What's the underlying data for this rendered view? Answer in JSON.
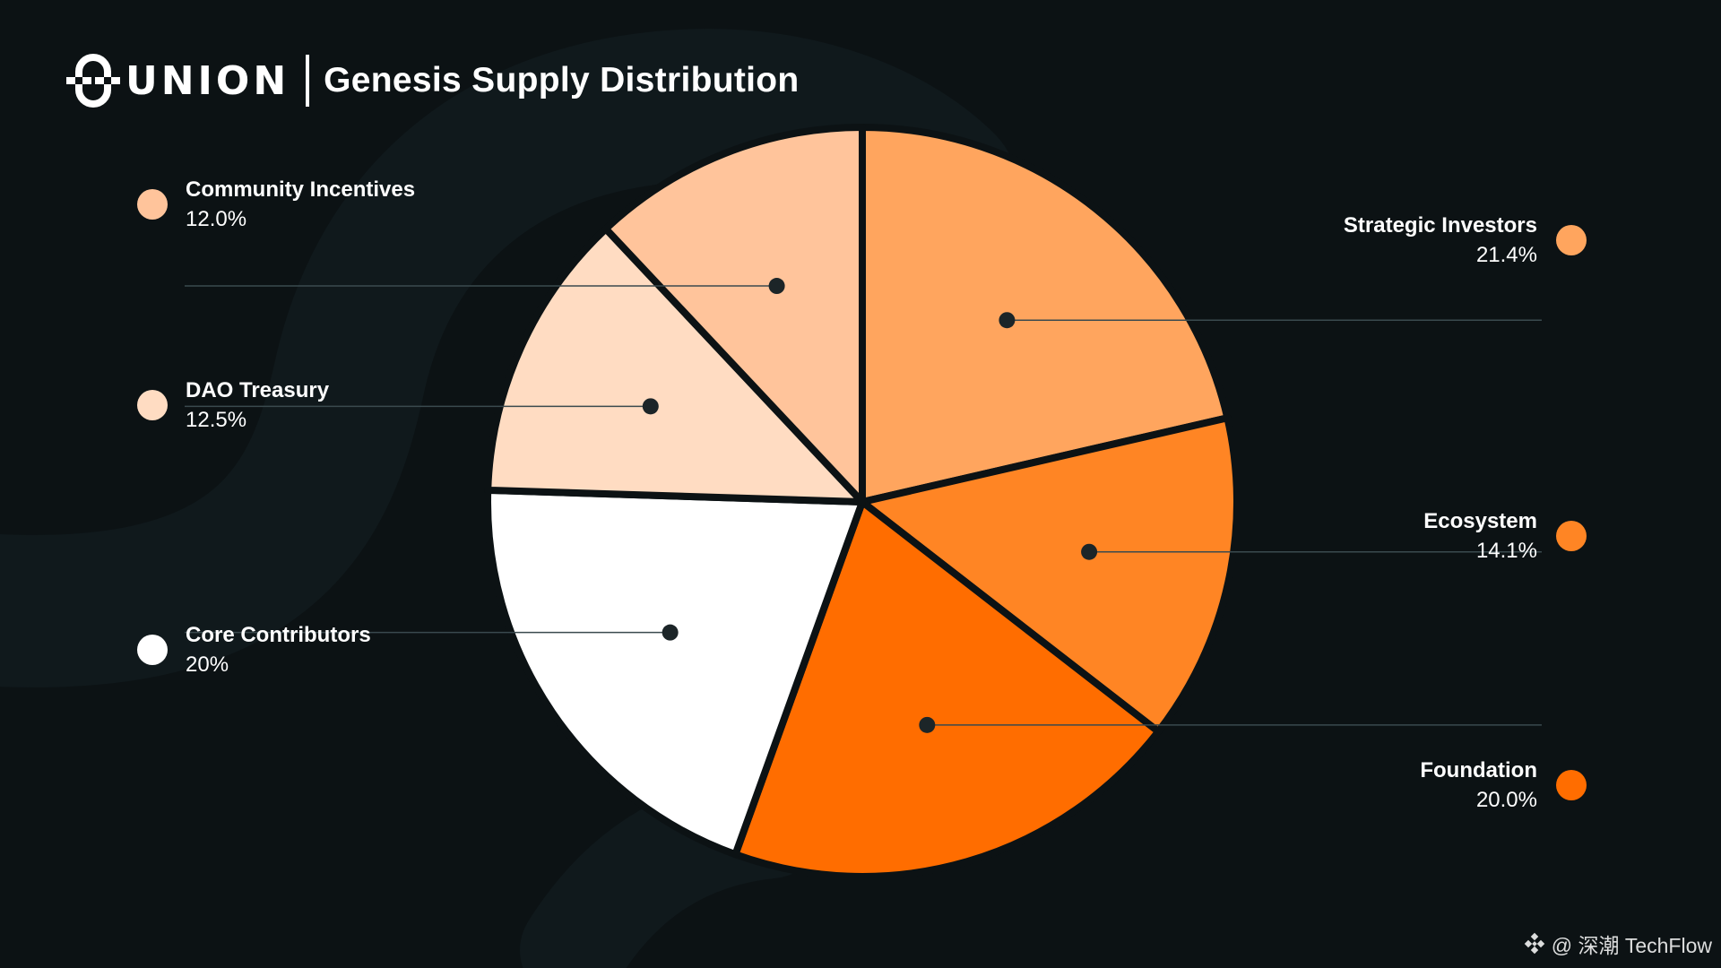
{
  "header": {
    "brand": "UNION",
    "title": "Genesis Supply Distribution"
  },
  "watermark": {
    "text": "@ 深潮 TechFlow"
  },
  "colors": {
    "background": "#0c1214",
    "swirl": "#132024",
    "slice_border": "#0c1214",
    "leader_line": "#3a4a4e",
    "marker_dot": "#1c2528"
  },
  "chart_data": {
    "type": "pie",
    "title": "Genesis Supply Distribution",
    "slices": [
      {
        "label": "Strategic Investors",
        "value_text": "21.4%",
        "value": 21.4,
        "color": "#ffa55e"
      },
      {
        "label": "Ecosystem",
        "value_text": "14.1%",
        "value": 14.1,
        "color": "#ff8524"
      },
      {
        "label": "Foundation",
        "value_text": "20.0%",
        "value": 20.0,
        "color": "#ff6d00"
      },
      {
        "label": "Core Contributors",
        "value_text": "20%",
        "value": 20.0,
        "color": "#ffffff"
      },
      {
        "label": "DAO Treasury",
        "value_text": "12.5%",
        "value": 12.5,
        "color": "#ffdcc2"
      },
      {
        "label": "Community Incentives",
        "value_text": "12.0%",
        "value": 12.0,
        "color": "#ffc49b"
      }
    ]
  }
}
